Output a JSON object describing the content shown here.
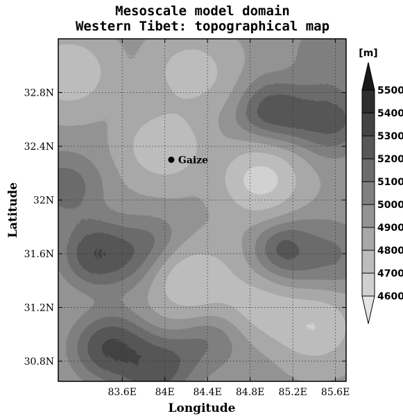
{
  "title": {
    "line1": "Mesoscale model domain",
    "line2": "Western Tibet: topographical map"
  },
  "axes": {
    "xlabel": "Longitude",
    "ylabel": "Latitude",
    "x_ticks": [
      "83.6E",
      "84E",
      "84.4E",
      "84.8E",
      "85.2E",
      "85.6E"
    ],
    "y_ticks": [
      "32.8N",
      "32.4N",
      "32N",
      "31.6N",
      "31.2N",
      "30.8N"
    ],
    "x_range": [
      83.0,
      85.7
    ],
    "y_range": [
      30.65,
      33.2
    ],
    "grid": "dotted"
  },
  "station": {
    "name": "Gaize",
    "lon": 84.06,
    "lat": 32.3
  },
  "colorbar": {
    "unit": "[m]",
    "levels": [
      "5500",
      "5400",
      "5300",
      "5200",
      "5100",
      "5000",
      "4900",
      "4800",
      "4700",
      "4600"
    ],
    "colors": [
      "#1a1a1a",
      "#2e2e2e",
      "#434343",
      "#575757",
      "#6b6b6b",
      "#808080",
      "#949494",
      "#a8a8a8",
      "#bcbcbc",
      "#d0d0d0",
      "#e4e4e4"
    ]
  },
  "map_data": {
    "type": "filled-contour",
    "variable": "terrain height",
    "units": "m",
    "background_level_m": 4900,
    "features": [
      {
        "lon": 83.1,
        "lat": 32.95,
        "height_m": 4650
      },
      {
        "lon": 84.25,
        "lat": 32.95,
        "height_m": 4700
      },
      {
        "lon": 85.55,
        "lat": 33.1,
        "height_m": 5100
      },
      {
        "lon": 85.05,
        "lat": 32.65,
        "height_m": 5350
      },
      {
        "lon": 85.55,
        "lat": 32.6,
        "height_m": 5300
      },
      {
        "lon": 84.0,
        "lat": 32.4,
        "height_m": 4650
      },
      {
        "lon": 84.9,
        "lat": 32.15,
        "height_m": 4600
      },
      {
        "lon": 83.05,
        "lat": 32.1,
        "height_m": 5200
      },
      {
        "lon": 83.4,
        "lat": 31.6,
        "height_m": 5400
      },
      {
        "lon": 83.85,
        "lat": 31.6,
        "height_m": 5250
      },
      {
        "lon": 84.25,
        "lat": 31.4,
        "height_m": 4650
      },
      {
        "lon": 84.75,
        "lat": 31.55,
        "height_m": 4800
      },
      {
        "lon": 85.15,
        "lat": 31.6,
        "height_m": 5400
      },
      {
        "lon": 85.55,
        "lat": 31.6,
        "height_m": 5150
      },
      {
        "lon": 84.9,
        "lat": 31.2,
        "height_m": 4700
      },
      {
        "lon": 85.4,
        "lat": 31.05,
        "height_m": 4650
      },
      {
        "lon": 83.5,
        "lat": 30.9,
        "height_m": 5400
      },
      {
        "lon": 83.9,
        "lat": 30.75,
        "height_m": 5350
      },
      {
        "lon": 84.45,
        "lat": 30.9,
        "height_m": 5200
      },
      {
        "lon": 84.7,
        "lat": 30.7,
        "height_m": 4950
      }
    ]
  }
}
